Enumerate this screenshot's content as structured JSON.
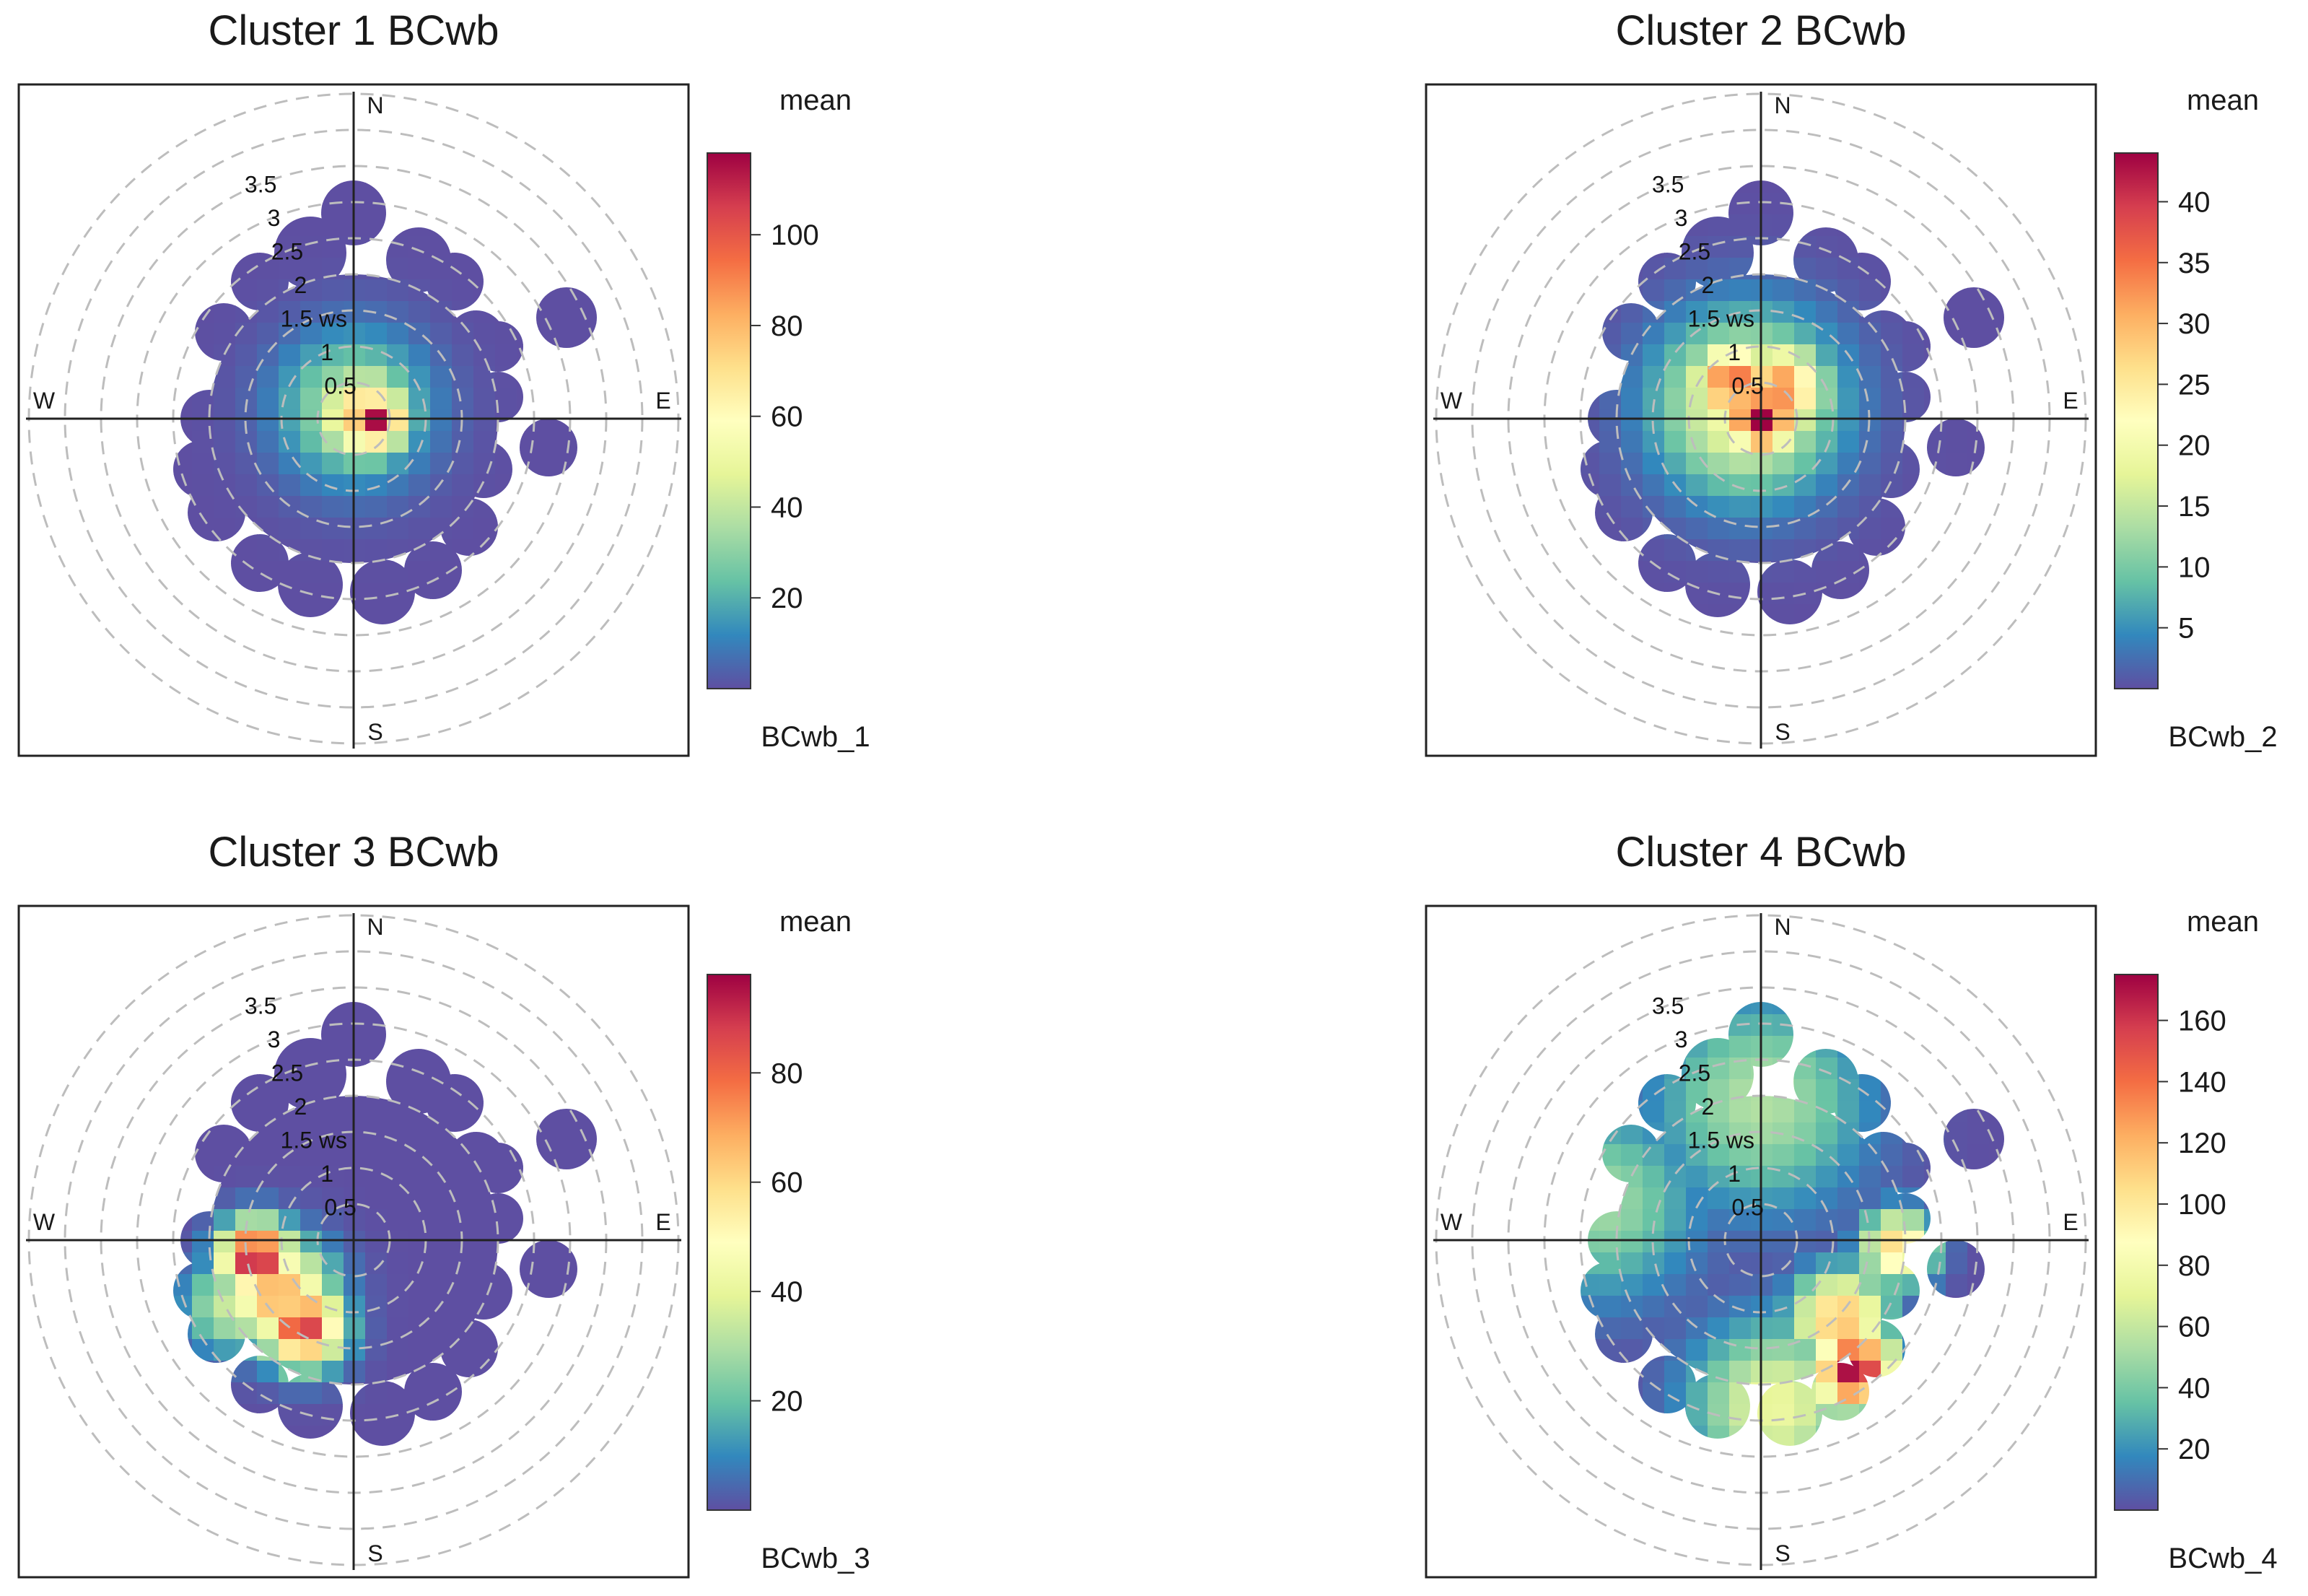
{
  "chart_data": [
    {
      "type": "polar_plot",
      "title": "Cluster 1 BCwb",
      "legend_title": "mean",
      "legend_subtitle": "BCwb_1",
      "colorbar_range": [
        0,
        118
      ],
      "colorbar_ticks": [
        "20",
        "40",
        "60",
        "80",
        "100"
      ],
      "colorbar_tick_values": [
        20,
        40,
        60,
        80,
        100
      ],
      "radial_ticks": [
        "0.5",
        "1",
        "1.5 ws",
        "2",
        "2.5",
        "3",
        "3.5"
      ],
      "radial_tick_values": [
        0.5,
        1,
        1.5,
        2,
        2.5,
        3,
        3.5
      ],
      "directions": [
        "N",
        "E",
        "S",
        "W"
      ],
      "hotspots": [
        {
          "u": 0.35,
          "v": -0.05,
          "s": 0.25,
          "value": 118
        },
        {
          "u": 0.15,
          "v": 0.05,
          "s": 0.45,
          "value": 80
        },
        {
          "u": 0.0,
          "v": 0.15,
          "s": 0.7,
          "value": 40
        }
      ]
    },
    {
      "type": "polar_plot",
      "title": "Cluster 2 BCwb",
      "legend_title": "mean",
      "legend_subtitle": "BCwb_2",
      "colorbar_range": [
        0,
        44
      ],
      "colorbar_ticks": [
        "5",
        "10",
        "15",
        "20",
        "25",
        "30",
        "35",
        "40"
      ],
      "colorbar_tick_values": [
        5,
        10,
        15,
        20,
        25,
        30,
        35,
        40
      ],
      "radial_ticks": [
        "0.5",
        "1",
        "1.5 ws",
        "2",
        "2.5",
        "3",
        "3.5"
      ],
      "radial_tick_values": [
        0.5,
        1,
        1.5,
        2,
        2.5,
        3,
        3.5
      ],
      "directions": [
        "N",
        "E",
        "S",
        "W"
      ],
      "hotspots": [
        {
          "u": 0.0,
          "v": 0.0,
          "s": 0.35,
          "value": 44
        },
        {
          "u": -0.4,
          "v": 0.5,
          "s": 0.4,
          "value": 36
        },
        {
          "u": 0.25,
          "v": 0.4,
          "s": 0.45,
          "value": 34
        },
        {
          "u": -0.2,
          "v": 0.2,
          "s": 0.85,
          "value": 22
        }
      ]
    },
    {
      "type": "polar_plot",
      "title": "Cluster 3 BCwb",
      "legend_title": "mean",
      "legend_subtitle": "BCwb_3",
      "colorbar_range": [
        0,
        98
      ],
      "colorbar_ticks": [
        "20",
        "40",
        "60",
        "80"
      ],
      "colorbar_tick_values": [
        20,
        40,
        60,
        80
      ],
      "radial_ticks": [
        "0.5",
        "1",
        "1.5 ws",
        "2",
        "2.5",
        "3",
        "3.5"
      ],
      "radial_tick_values": [
        0.5,
        1,
        1.5,
        2,
        2.5,
        3,
        3.5
      ],
      "directions": [
        "N",
        "E",
        "S",
        "W"
      ],
      "hotspots": [
        {
          "u": -1.35,
          "v": -0.25,
          "s": 0.35,
          "value": 98
        },
        {
          "u": -0.7,
          "v": -1.2,
          "s": 0.38,
          "value": 90
        },
        {
          "u": -1.05,
          "v": -0.75,
          "s": 0.5,
          "value": 70
        },
        {
          "u": -1.7,
          "v": -0.9,
          "s": 0.45,
          "value": 35
        }
      ]
    },
    {
      "type": "polar_plot",
      "title": "Cluster 4 BCwb",
      "legend_title": "mean",
      "legend_subtitle": "BCwb_4",
      "colorbar_range": [
        0,
        175
      ],
      "colorbar_ticks": [
        "20",
        "40",
        "60",
        "80",
        "100",
        "120",
        "140",
        "160"
      ],
      "colorbar_tick_values": [
        20,
        40,
        60,
        80,
        100,
        120,
        140,
        160
      ],
      "radial_ticks": [
        "0.5",
        "1",
        "1.5 ws",
        "2",
        "2.5",
        "3",
        "3.5"
      ],
      "radial_tick_values": [
        0.5,
        1,
        1.5,
        2,
        2.5,
        3,
        3.5
      ],
      "directions": [
        "N",
        "E",
        "S",
        "W"
      ],
      "hotspots": [
        {
          "u": 1.3,
          "v": -1.8,
          "s": 0.4,
          "value": 175
        },
        {
          "u": 1.1,
          "v": -1.1,
          "s": 0.45,
          "value": 120
        },
        {
          "u": 1.9,
          "v": -0.1,
          "s": 0.35,
          "value": 110
        },
        {
          "u": 0.2,
          "v": -2.3,
          "s": 0.8,
          "value": 75
        },
        {
          "u": 0.0,
          "v": 1.9,
          "s": 1.0,
          "value": 55
        },
        {
          "u": -2.2,
          "v": 0.5,
          "s": 0.9,
          "value": 50
        }
      ]
    }
  ]
}
